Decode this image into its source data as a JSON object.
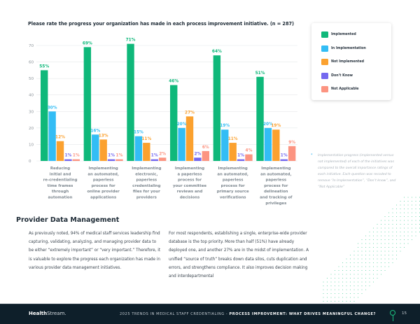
{
  "chart_data": {
    "type": "bar",
    "title": "Please rate the progress your organization has made in each process improvement initiative. (n = 287)",
    "xlabel": "",
    "ylabel": "",
    "ylim": [
      0,
      70
    ],
    "yticks": [
      0,
      10,
      20,
      30,
      40,
      50,
      60,
      70
    ],
    "grid": true,
    "legend_position": "top-right",
    "categories": [
      "Reducing initial and re-credentialing time frames through automation",
      "Implementing an automated, paperless process for online provider applications",
      "Implementing electronic, paperless credentialing files for your providers",
      "Implementing a paperless process for your committee reviews and decisions",
      "Implementing an automated, paperless process for primary source verifications",
      "Implementing an automated, paperless process for delineation and tracking of privileges"
    ],
    "category_lines": [
      [
        "Reducing",
        "initial and",
        "re-credentialing",
        "time frames",
        "through",
        "automation"
      ],
      [
        "Implementing",
        "an automated,",
        "paperless",
        "process for",
        "online provider",
        "applications"
      ],
      [
        "Implementing",
        "electronic,",
        "paperless",
        "credentialing",
        "files for your",
        "providers"
      ],
      [
        "Implementing",
        "a paperless",
        "process for",
        "your committee",
        "reviews and",
        "decisions"
      ],
      [
        "Implementing",
        "an automated,",
        "paperless",
        "process for",
        "primary source",
        "verifications"
      ],
      [
        "Implementing",
        "an automated,",
        "paperless",
        "process for",
        "delineation",
        "and tracking of",
        "privileges"
      ]
    ],
    "series": [
      {
        "name": "Implemented",
        "color": "#0fb87a",
        "values": [
          55,
          69,
          71,
          46,
          64,
          51
        ]
      },
      {
        "name": "In Implementation",
        "color": "#33bdf5",
        "values": [
          30,
          16,
          15,
          20,
          19,
          20
        ]
      },
      {
        "name": "Not Implemented",
        "color": "#fba12f",
        "values": [
          12,
          13,
          11,
          27,
          11,
          19
        ]
      },
      {
        "name": "Don't Know",
        "color": "#7468ef",
        "values": [
          1,
          1,
          1,
          2,
          1,
          1
        ]
      },
      {
        "name": "Not Applicable",
        "color": "#fc9481",
        "values": [
          1,
          1,
          2,
          6,
          4,
          9
        ]
      }
    ],
    "value_suffix": "%"
  },
  "legend": {
    "items": [
      {
        "label": "Implemented",
        "color": "#0fb87a"
      },
      {
        "label": "In Implementation",
        "color": "#33bdf5"
      },
      {
        "label": "Not Implemented",
        "color": "#fba12f"
      },
      {
        "label": "Don't Know",
        "color": "#7468ef"
      },
      {
        "label": "Not Applicable",
        "color": "#fc9481"
      }
    ]
  },
  "footnote": {
    "marker": "*",
    "text": "Implementation progress (implemented versus not implemented) of each of the initiatives was compared to the overall importance ratings of each initiative. Each question was recoded to remove “In Implementation”, “Don’t know”, and “Not Applicable”"
  },
  "section": {
    "heading": "Provider Data Management",
    "left_paragraph": "As previously noted, 94% of medical staff services leadership find capturing, validating, analyzing, and managing provider data to be either “extremely important” or “very important.” Therefore, it is valuable to explore the progress each organization has made in various provider data management initiatives.",
    "right_paragraph": "For most respondents, establishing a single, enterprise-wide provider database is the top priority. More than half (51%) have already deployed one, and another 27% are in the midst of implementation. A unified “source of truth” breaks down data silos, cuts duplication and errors, and strengthens compliance. It also improves decision making and interdepartmental"
  },
  "footer": {
    "logo_bold": "Health",
    "logo_thin": "Stream.",
    "report_title": "2025 TRENDS IN MEDICAL STAFF CREDENTIALING - ",
    "section_title": "PROCESS IMPROVEMENT: WHAT DRIVES MEANINGFUL CHANGE?",
    "page_number": "15"
  },
  "colors": {
    "accent": "#0fb87a",
    "footer_bg": "#0e1f2a"
  }
}
